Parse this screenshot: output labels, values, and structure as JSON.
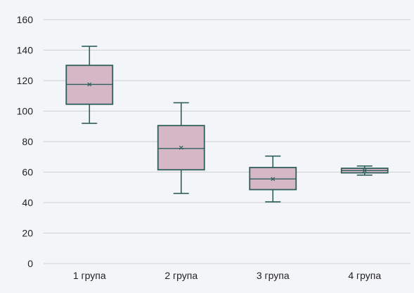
{
  "colors": {
    "background": "#f3f5f8",
    "gridline": "#cfcfcf",
    "box_fill": "#d6b7c6",
    "box_stroke": "#2f5f5c"
  },
  "chart_data": {
    "type": "boxplot",
    "title": "",
    "xlabel": "",
    "ylabel": "",
    "ylim": [
      0,
      160
    ],
    "yticks": [
      0,
      20,
      40,
      60,
      80,
      100,
      120,
      140,
      160
    ],
    "grid": true,
    "categories": [
      "1 група",
      "2 група",
      "3 група",
      "4 група"
    ],
    "boxes": [
      {
        "category": "1 група",
        "min": 92,
        "q1": 104.5,
        "median": 117.5,
        "mean": 117.5,
        "q3": 130,
        "max": 142.5
      },
      {
        "category": "2 група",
        "min": 46,
        "q1": 61.5,
        "median": 75.5,
        "mean": 76,
        "q3": 90.5,
        "max": 105.5
      },
      {
        "category": "3 група",
        "min": 40.5,
        "q1": 48.5,
        "median": 55.5,
        "mean": 55.5,
        "q3": 63,
        "max": 70.5
      },
      {
        "category": "4 група",
        "min": 58,
        "q1": 59.5,
        "median": 61,
        "mean": 61,
        "q3": 62.5,
        "max": 64
      }
    ]
  }
}
